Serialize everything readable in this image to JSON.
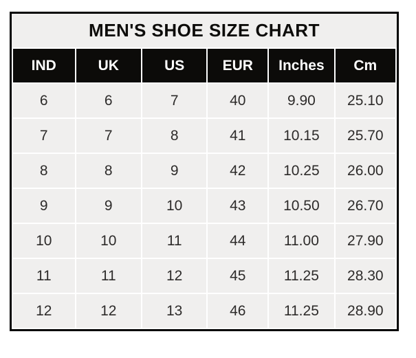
{
  "table": {
    "title": "MEN'S SHOE SIZE CHART",
    "columns": [
      "IND",
      "UK",
      "US",
      "EUR",
      "Inches",
      "Cm"
    ],
    "rows": [
      [
        "6",
        "6",
        "7",
        "40",
        "9.90",
        "25.10"
      ],
      [
        "7",
        "7",
        "8",
        "41",
        "10.15",
        "25.70"
      ],
      [
        "8",
        "8",
        "9",
        "42",
        "10.25",
        "26.00"
      ],
      [
        "9",
        "9",
        "10",
        "43",
        "10.50",
        "26.70"
      ],
      [
        "10",
        "10",
        "11",
        "44",
        "11.00",
        "27.90"
      ],
      [
        "11",
        "11",
        "12",
        "45",
        "11.25",
        "28.30"
      ],
      [
        "12",
        "12",
        "13",
        "46",
        "11.25",
        "28.90"
      ]
    ]
  },
  "colors": {
    "border": "#000000",
    "gridline": "#ffffff",
    "title_bg": "#f0efee",
    "header_bg": "#0c0b09",
    "header_text": "#ffffff",
    "cell_bg": "#f0efee",
    "cell_text": "#2d2b2a"
  }
}
